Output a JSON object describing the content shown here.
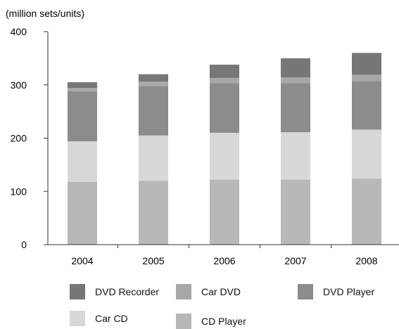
{
  "chart_data": {
    "type": "bar",
    "stacked": true,
    "unit_label": "(million sets/units)",
    "categories": [
      "2004",
      "2005",
      "2006",
      "2007",
      "2008"
    ],
    "ylim": [
      0,
      400
    ],
    "yticks": [
      "0",
      "100",
      "200",
      "300",
      "400"
    ],
    "grid": false,
    "series": [
      {
        "name": "CD Player",
        "color": "#b8b8b8",
        "values": [
          118,
          120,
          122,
          122,
          124
        ]
      },
      {
        "name": "Car CD",
        "color": "#d8d8d8",
        "values": [
          76,
          85,
          88,
          89,
          92
        ]
      },
      {
        "name": "DVD Player",
        "color": "#8c8c8c",
        "values": [
          94,
          93,
          93,
          92,
          91
        ]
      },
      {
        "name": "Car DVD",
        "color": "#a8a8a8",
        "values": [
          6,
          8,
          10,
          11,
          12
        ]
      },
      {
        "name": "DVD Recorder",
        "color": "#777777",
        "values": [
          11,
          14,
          25,
          36,
          41
        ]
      }
    ],
    "legend": {
      "placement": "bottom",
      "order": [
        "DVD Recorder",
        "Car DVD",
        "DVD Player",
        "Car CD",
        "CD Player"
      ]
    }
  }
}
